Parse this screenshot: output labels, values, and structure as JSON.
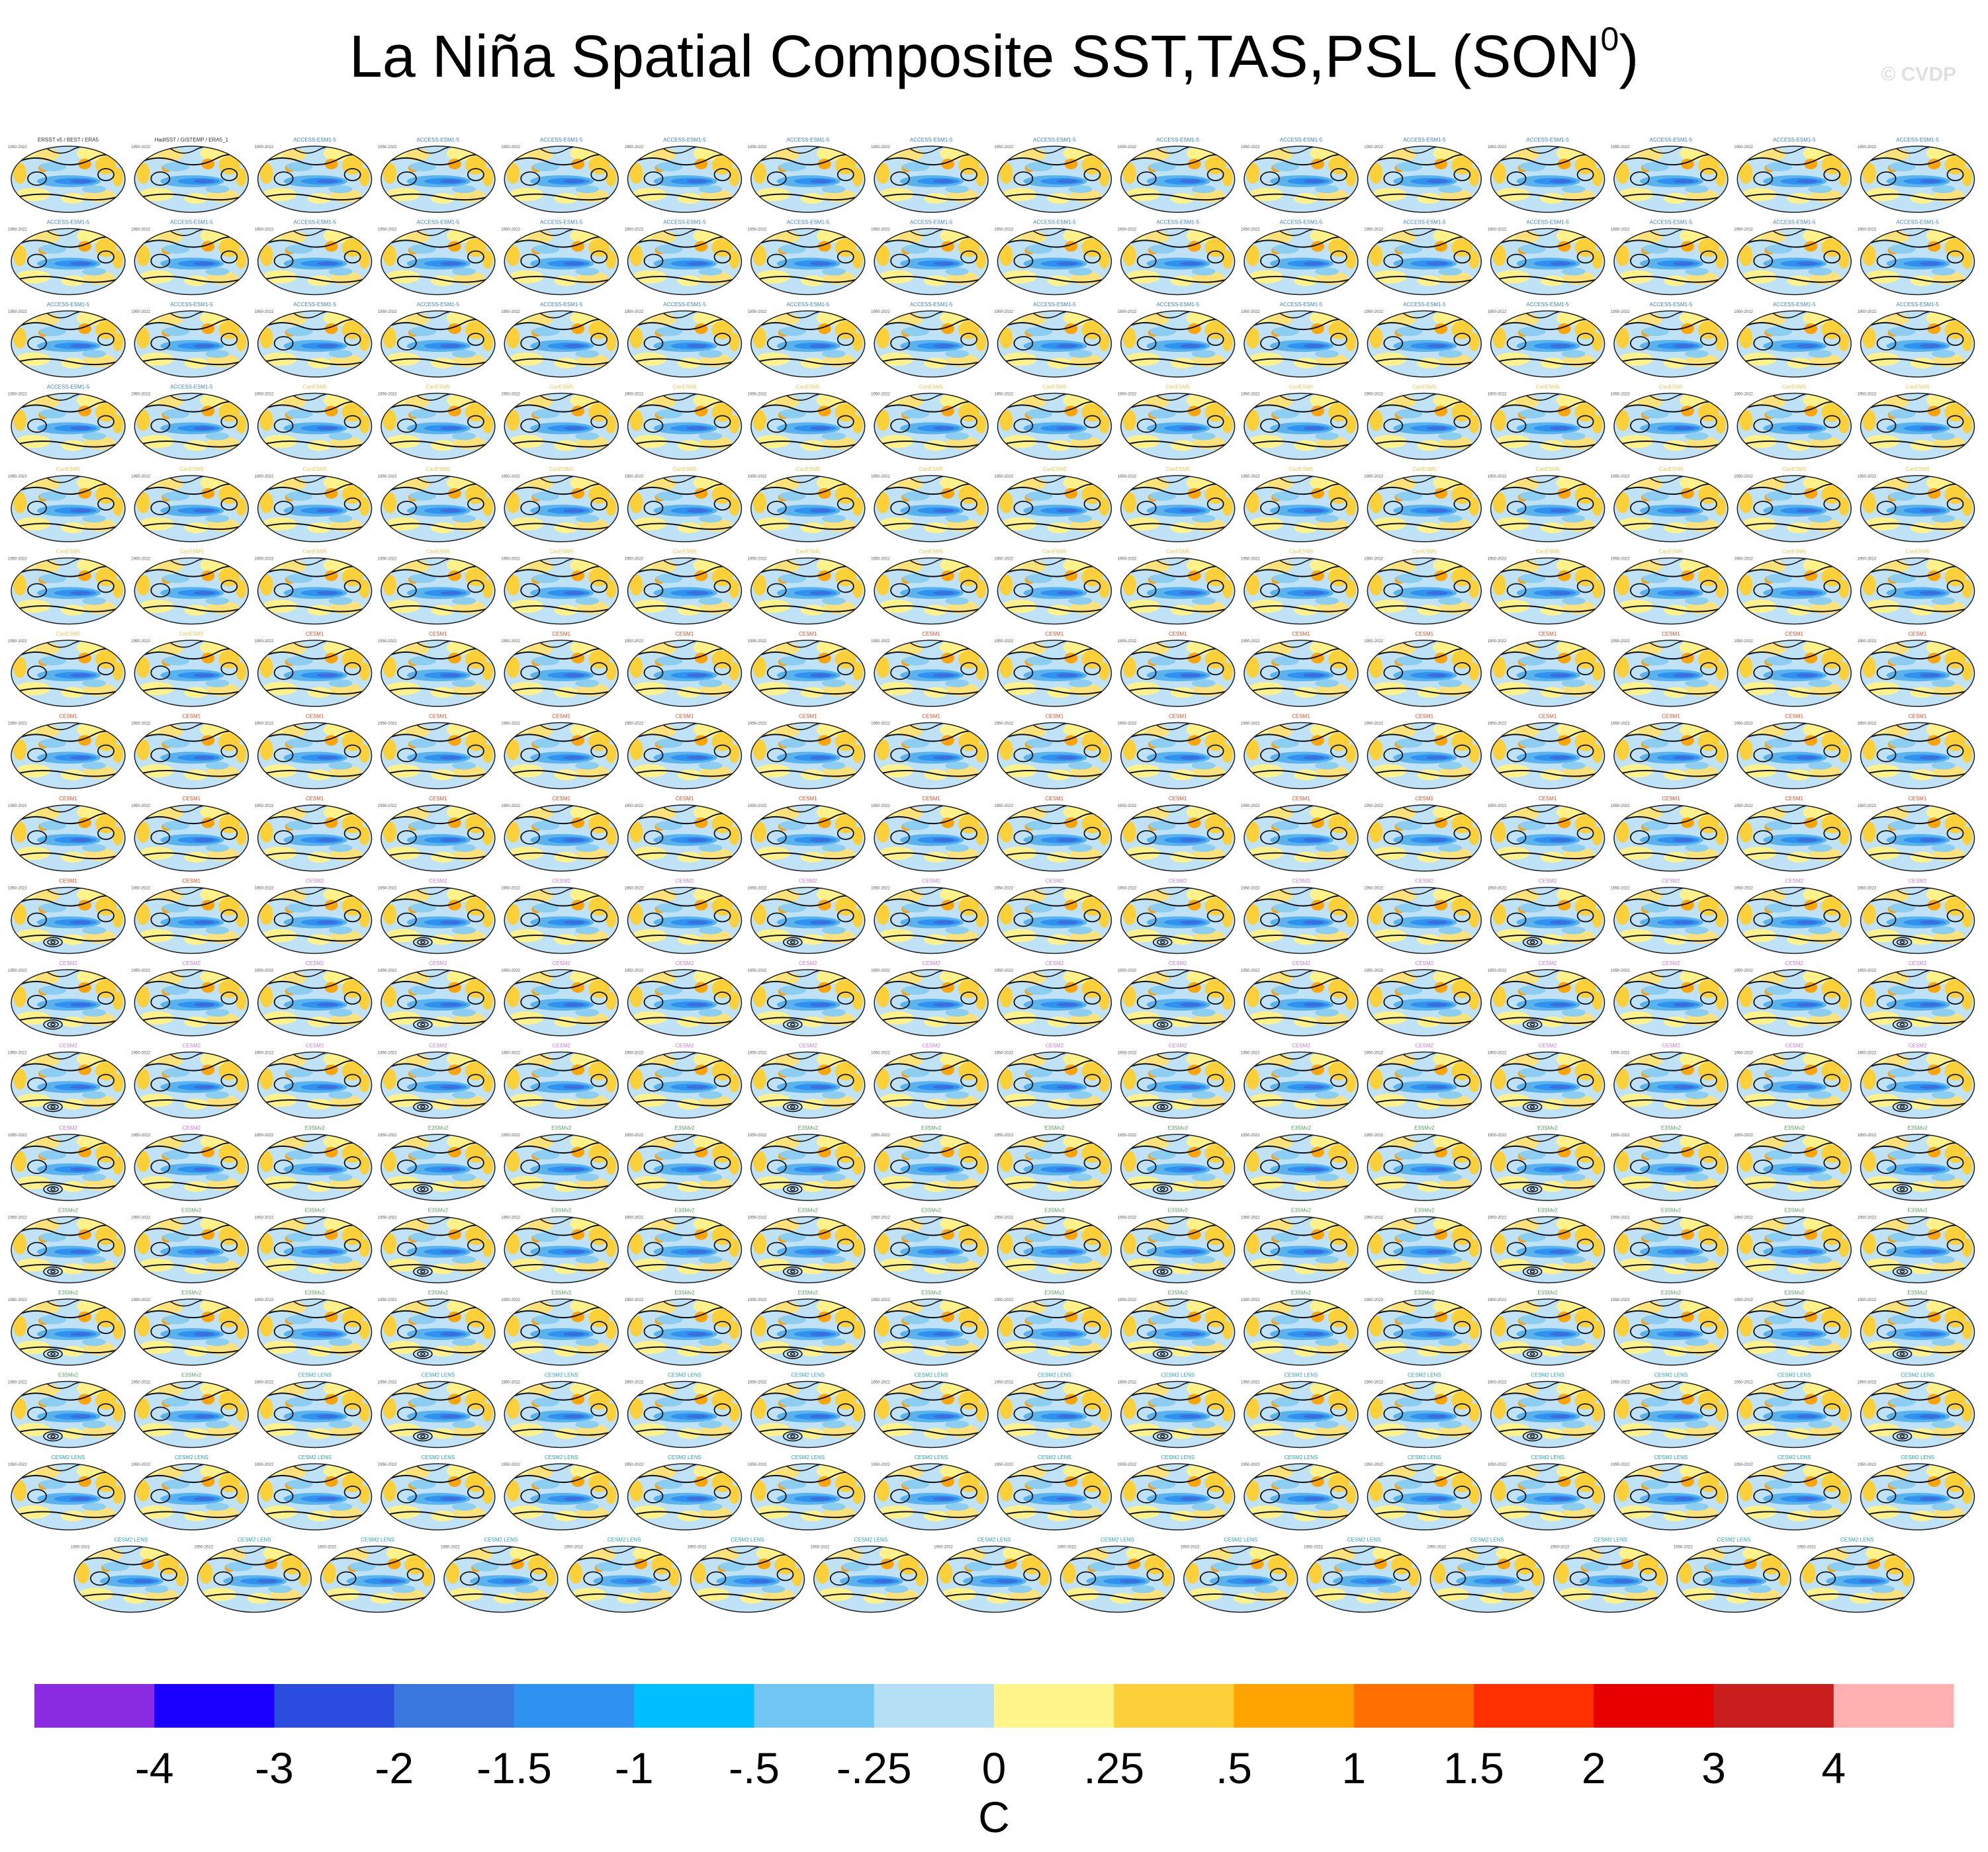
{
  "title": {
    "main": "La Niña Spatial Composite SST,TAS,PSL (SON",
    "superscript": "0",
    "close": ")"
  },
  "watermark": "© CVDP",
  "chart_data": {
    "type": "heatmap",
    "title": "La Niña Spatial Composite SST,TAS,PSL (SON0)",
    "panel_grid": {
      "rows_of_16": 17,
      "last_row": 15,
      "total_panels": 287
    },
    "panel_header_left": "1950-2022",
    "observations_panels": [
      "ERSST v5 / BEST / ERA5",
      "HadISST / GISTEMP / ERA5_1"
    ],
    "model_family_colors": {
      "ACCESS-ESM1-5": "#3a7fd0",
      "CanESM5": "#e5c75a",
      "CESM1": "#d8502a",
      "CESM2": "#c87ad8",
      "E3SMv2": "#5aa060",
      "CESM2 LENS": "#2a9fb8"
    },
    "colorbar": {
      "labels": [
        "-4",
        "-3",
        "-2",
        "-1.5",
        "-1",
        "-.5",
        "-.25",
        "0",
        ".25",
        ".5",
        "1",
        "1.5",
        "2",
        "3",
        "4"
      ],
      "colors": [
        "#8a2be2",
        "#1a00ff",
        "#2a4de0",
        "#3a78e0",
        "#2f92f0",
        "#00bfff",
        "#70c5f2",
        "#b5dff4",
        "#fff58a",
        "#fcd038",
        "#ffa400",
        "#ff7000",
        "#ff3000",
        "#e60000",
        "#c81e1e",
        "#ffb0b0"
      ],
      "unit": "C"
    }
  }
}
